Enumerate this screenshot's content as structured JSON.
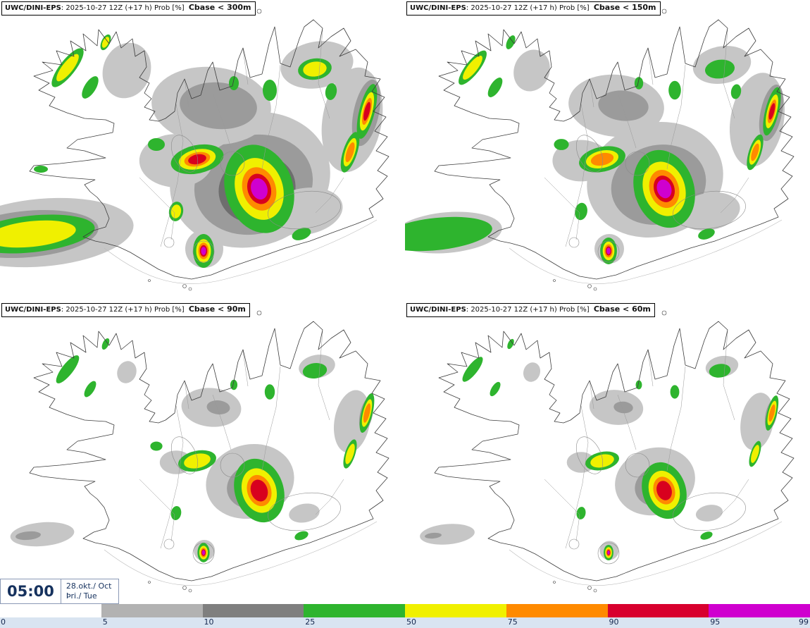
{
  "panels": [
    {
      "model": "UWC/DINI-EPS",
      "info": ": 2025-10-27 12Z (+17 h) Prob [%] ",
      "threshold": "Cbase < 300m"
    },
    {
      "model": "UWC/DINI-EPS",
      "info": ": 2025-10-27 12Z (+17 h) Prob [%] ",
      "threshold": "Cbase < 150m"
    },
    {
      "model": "UWC/DINI-EPS",
      "info": ": 2025-10-27 12Z (+17 h) Prob [%] ",
      "threshold": "Cbase < 90m"
    },
    {
      "model": "UWC/DINI-EPS",
      "info": ": 2025-10-27 12Z (+17 h) Prob [%] ",
      "threshold": "Cbase < 60m"
    }
  ],
  "clock": {
    "time": "05:00",
    "date": "28.okt./ Oct",
    "day": "Þri./ Tue"
  },
  "colorbar": {
    "tick_labels": [
      "0",
      "5",
      "10",
      "25",
      "50",
      "75",
      "90",
      "95",
      "99"
    ],
    "segments": [
      {
        "range": "0-5",
        "color": "#ffffff"
      },
      {
        "range": "5-10",
        "color": "#b2b2b2"
      },
      {
        "range": "10-25",
        "color": "#7f7f7f"
      },
      {
        "range": "25-50",
        "color": "#2eb42e"
      },
      {
        "range": "50-75",
        "color": "#f0f000"
      },
      {
        "range": "75-90",
        "color": "#ff8a00"
      },
      {
        "range": "90-95",
        "color": "#d8002e"
      },
      {
        "range": "95-99",
        "color": "#cf00cf"
      }
    ]
  },
  "palette": {
    "gray1": "#c6c6c6",
    "gray2": "#9b9b9b",
    "gray3": "#6e6e6e",
    "green": "#2eb42e",
    "yellow": "#f0f000",
    "orange": "#ff8a00",
    "red": "#d8001e",
    "magenta": "#cf00cf",
    "coast": "#3c3c3c",
    "detail": "#999999"
  }
}
